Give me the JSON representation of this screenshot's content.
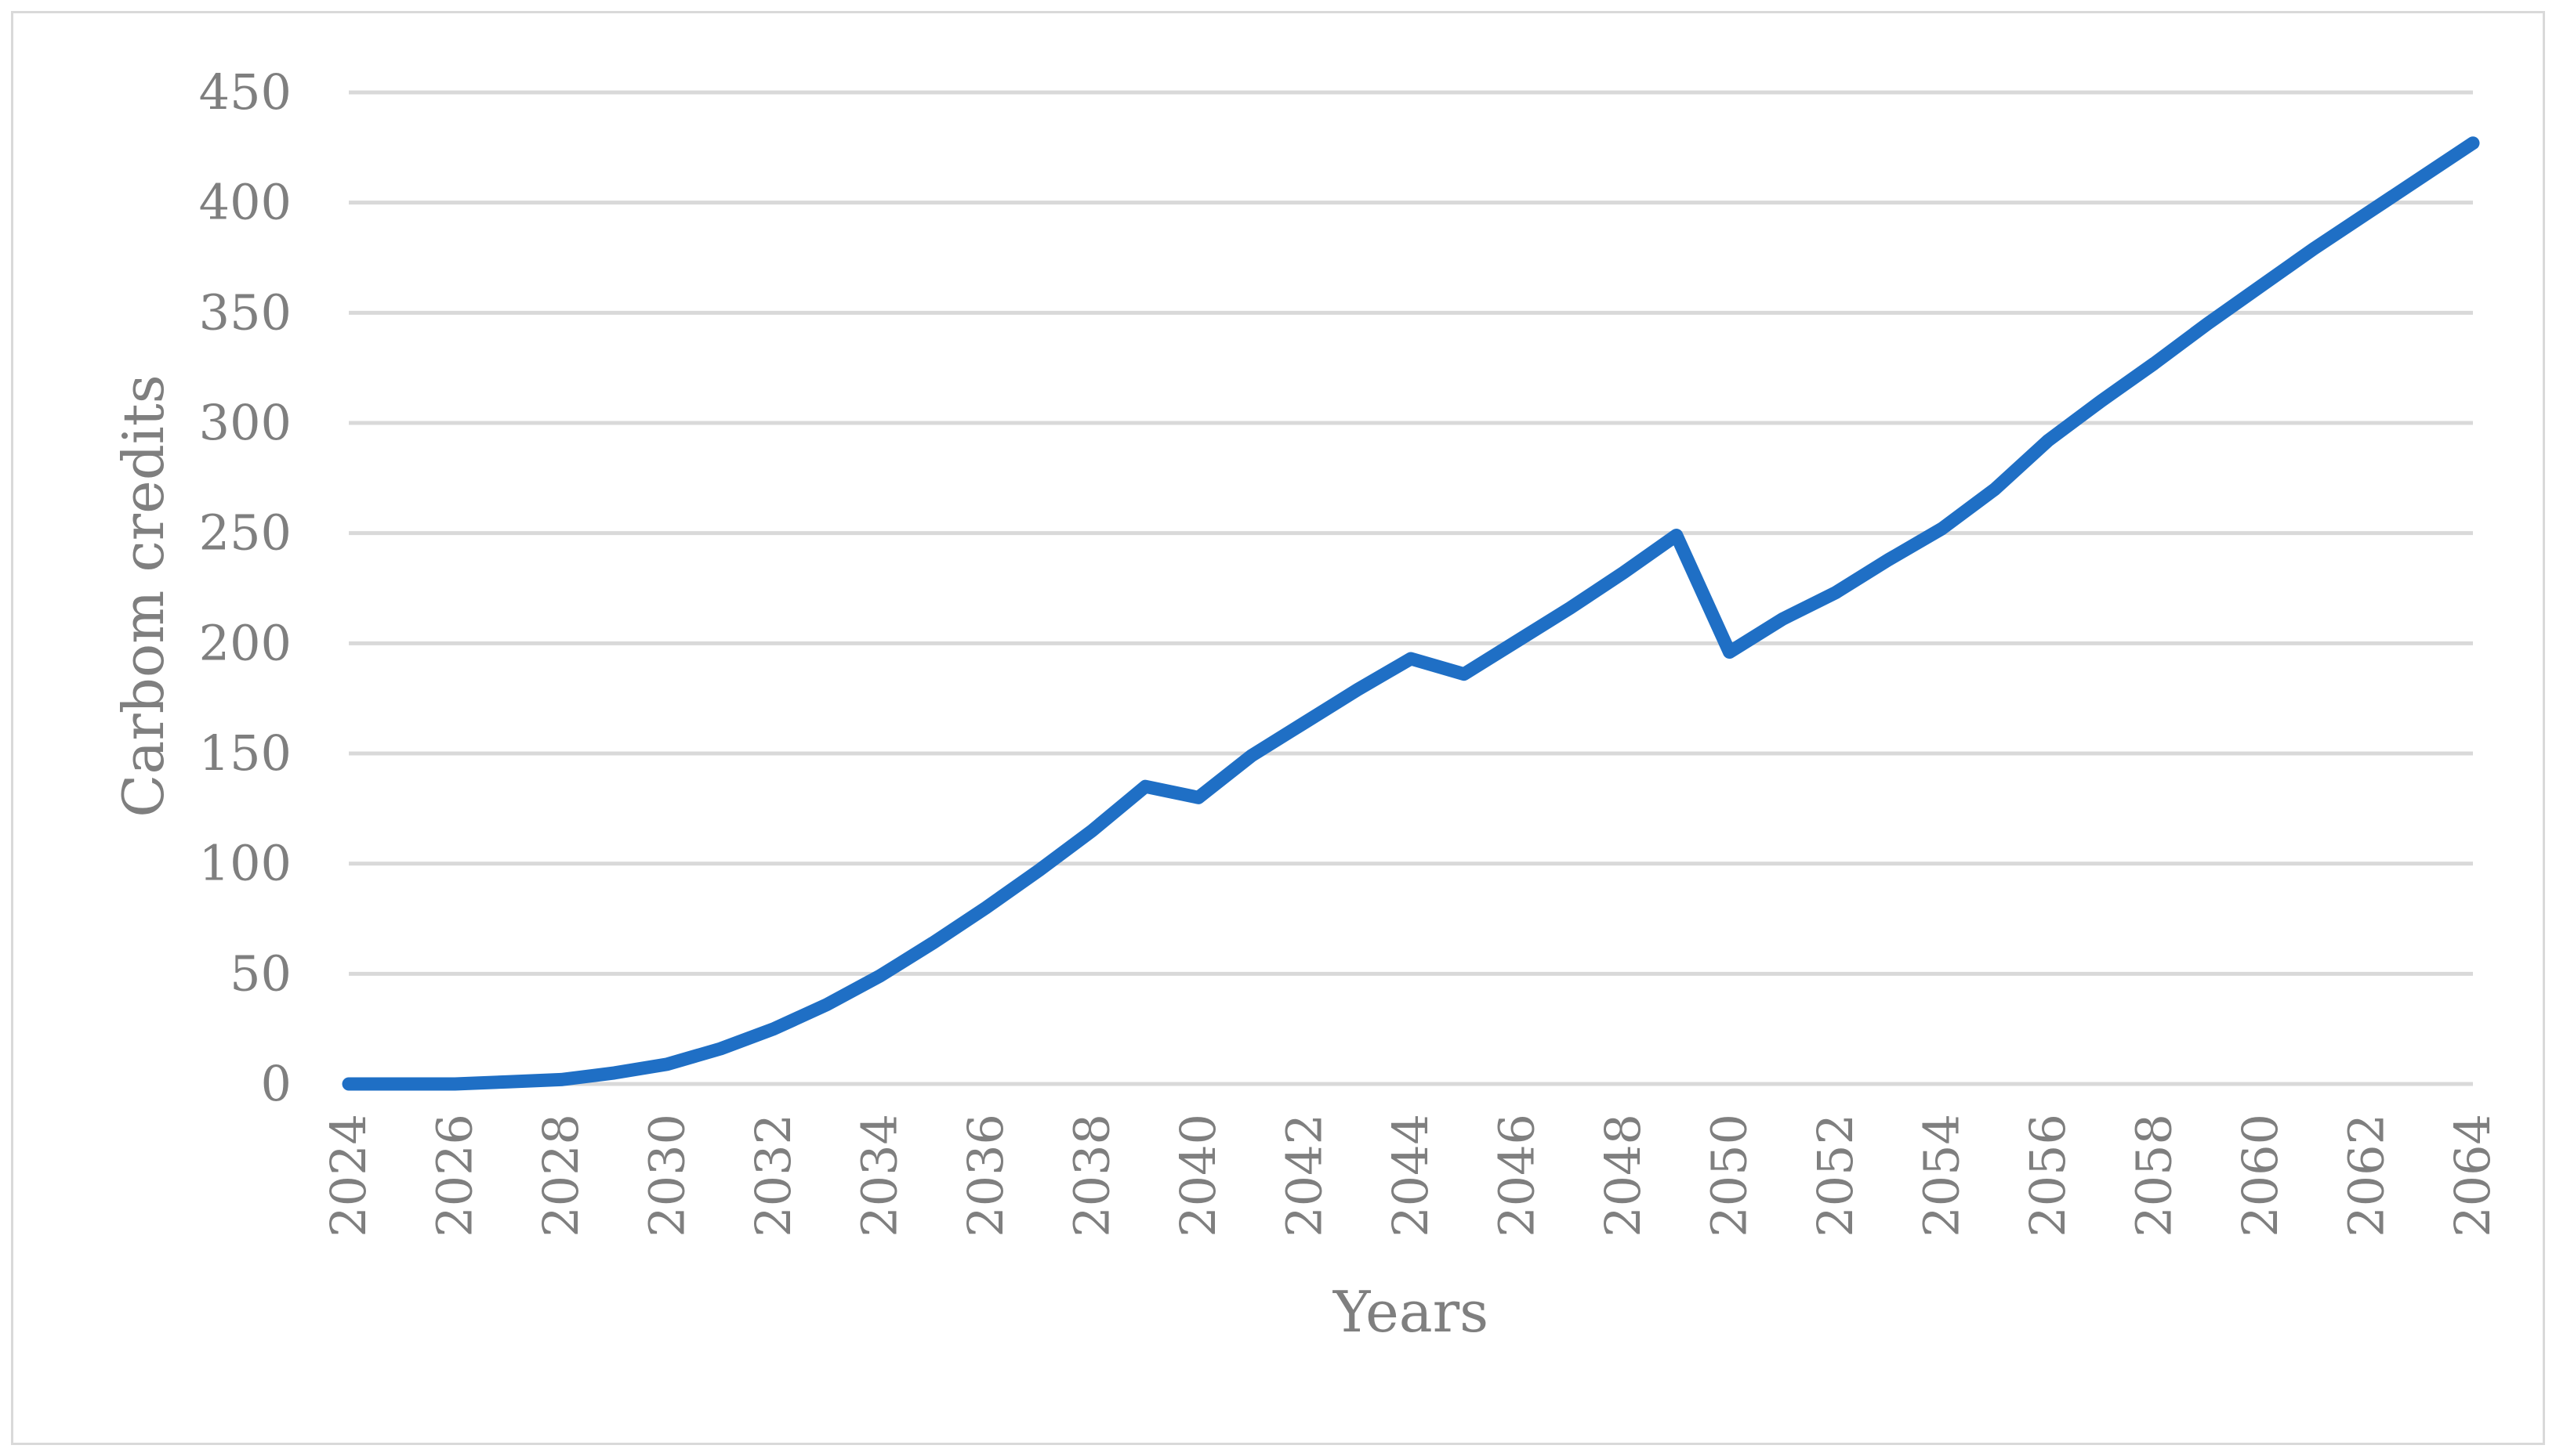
{
  "chart_data": {
    "type": "line",
    "title": "",
    "xlabel": "Years",
    "ylabel": "Carbom credits",
    "ylim": [
      0,
      450
    ],
    "yticks": [
      0,
      50,
      100,
      150,
      200,
      250,
      300,
      350,
      400,
      450
    ],
    "xticks": [
      2024,
      2026,
      2028,
      2030,
      2032,
      2034,
      2036,
      2038,
      2040,
      2042,
      2044,
      2046,
      2048,
      2050,
      2052,
      2054,
      2056,
      2058,
      2060,
      2062,
      2064
    ],
    "grid": true,
    "legend": "none",
    "series_color": "#1f6fc5",
    "series": [
      {
        "x": [
          2024,
          2025,
          2026,
          2027,
          2028,
          2029,
          2030,
          2031,
          2032,
          2033,
          2034,
          2035,
          2036,
          2037,
          2038,
          2039,
          2040,
          2041,
          2042,
          2043,
          2044,
          2045,
          2046,
          2047,
          2048,
          2049,
          2050,
          2051,
          2052,
          2053,
          2054,
          2055,
          2056,
          2057,
          2058,
          2059,
          2060,
          2061,
          2062,
          2063,
          2064
        ],
        "values": [
          0,
          0,
          0,
          1,
          2,
          5,
          9,
          16,
          25,
          36,
          49,
          64,
          80,
          97,
          115,
          135,
          130,
          149,
          164,
          179,
          193,
          186,
          201,
          216,
          232,
          249,
          196,
          211,
          223,
          238,
          252,
          270,
          292,
          310,
          327,
          345,
          362,
          379,
          395,
          411,
          427
        ]
      }
    ]
  }
}
